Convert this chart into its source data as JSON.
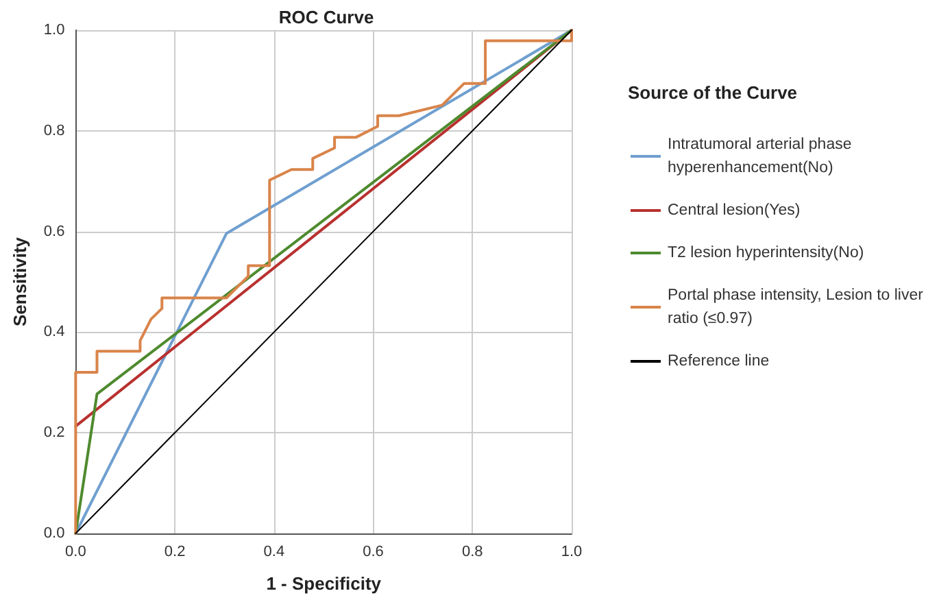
{
  "chart_data": {
    "type": "line",
    "title": "ROC Curve",
    "xlabel": "1 - Specificity",
    "ylabel": "Sensitivity",
    "legend_title": "Source of the Curve",
    "legend": "right",
    "grid": true,
    "marker": "none",
    "line_style": "solid",
    "xlim": [
      0,
      1
    ],
    "ylim": [
      0,
      1
    ],
    "xticks": [
      {
        "value": 0,
        "label": "0.0"
      },
      {
        "value": 0.2,
        "label": "0.2"
      },
      {
        "value": 0.4,
        "label": "0.4"
      },
      {
        "value": 0.6,
        "label": "0.6"
      },
      {
        "value": 0.8,
        "label": "0.8"
      },
      {
        "value": 1,
        "label": "1.0"
      }
    ],
    "yticks": [
      {
        "value": 0,
        "label": "0.0"
      },
      {
        "value": 0.2,
        "label": "0.2"
      },
      {
        "value": 0.4,
        "label": "0.4"
      },
      {
        "value": 0.6,
        "label": "0.6"
      },
      {
        "value": 0.8,
        "label": "0.8"
      },
      {
        "value": 1,
        "label": "1.0"
      }
    ],
    "series": [
      {
        "name": "Intratumoral arterial phase hyperenhancement(No)",
        "color": "#6f9fd0",
        "x": [
          0,
          0.304,
          1
        ],
        "values": [
          0,
          0.596,
          1
        ]
      },
      {
        "name": "Central lesion(Yes)",
        "color": "#b8312f",
        "x": [
          0,
          1
        ],
        "values": [
          0.213,
          1
        ]
      },
      {
        "name": "T2 lesion hyperintensity(No)",
        "color": "#4e8a2e",
        "x": [
          0,
          0.043,
          1
        ],
        "values": [
          0,
          0.277,
          1
        ]
      },
      {
        "name": "Portal phase intensity, Lesion to liver ratio (≤0.97)",
        "color": "#d9844a",
        "x": [
          0,
          0,
          0.043,
          0.043,
          0.13,
          0.13,
          0.152,
          0.174,
          0.174,
          0.304,
          0.348,
          0.348,
          0.391,
          0.391,
          0.435,
          0.478,
          0.478,
          0.522,
          0.522,
          0.565,
          0.609,
          0.609,
          0.652,
          0.739,
          0.783,
          0.826,
          0.826,
          1,
          1
        ],
        "values": [
          0,
          0.32,
          0.32,
          0.362,
          0.362,
          0.383,
          0.426,
          0.447,
          0.468,
          0.468,
          0.511,
          0.532,
          0.532,
          0.702,
          0.723,
          0.723,
          0.745,
          0.766,
          0.787,
          0.787,
          0.809,
          0.83,
          0.83,
          0.851,
          0.894,
          0.894,
          0.979,
          0.979,
          1
        ]
      },
      {
        "name": "Reference line",
        "color": "#000000",
        "x": [
          0,
          1
        ],
        "values": [
          0,
          1
        ]
      }
    ]
  }
}
